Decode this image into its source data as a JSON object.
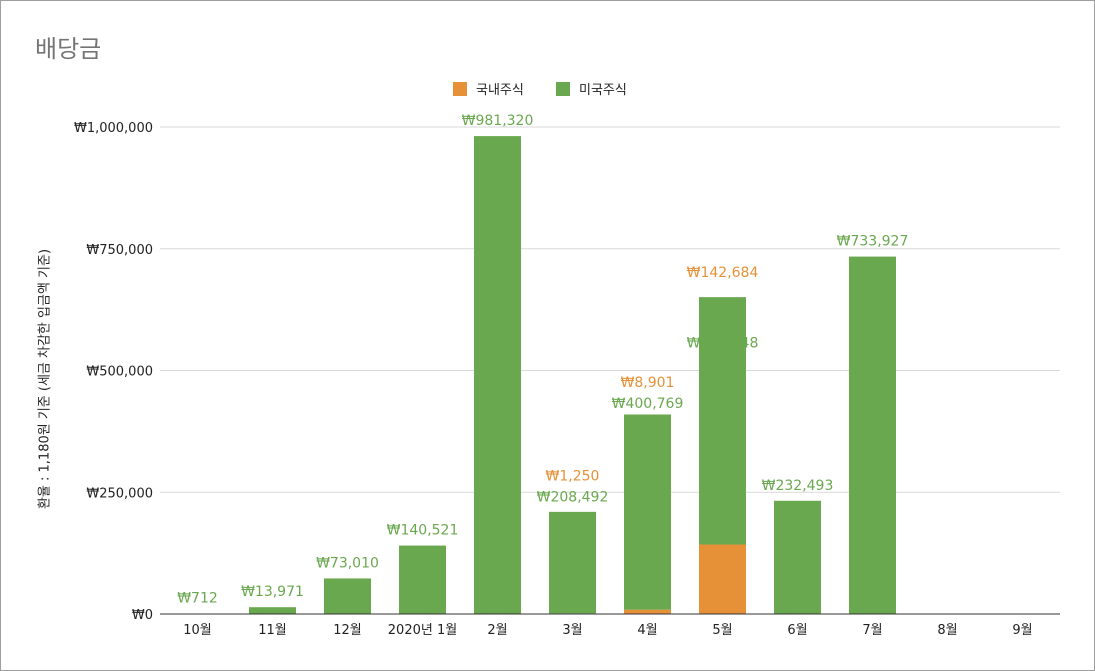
{
  "chart_data": {
    "type": "bar",
    "stacked": true,
    "title": "배당금",
    "xlabel": "",
    "ylabel": "환율 : 1,180원 기준 (세금 차감한 입금액 기준)",
    "ylim": [
      0,
      1000000
    ],
    "yticks": [
      0,
      250000,
      500000,
      750000,
      1000000
    ],
    "ytick_labels": [
      "₩0",
      "₩250,000",
      "₩500,000",
      "₩750,000",
      "₩1,000,000"
    ],
    "grid": true,
    "legend_position": "top",
    "categories": [
      "10월",
      "11월",
      "12월",
      "2020년 1월",
      "2월",
      "3월",
      "4월",
      "5월",
      "6월",
      "7월",
      "8월",
      "9월"
    ],
    "series": [
      {
        "name": "국내주식",
        "color": "#e69138",
        "values": [
          null,
          null,
          null,
          null,
          null,
          1250,
          8901,
          142684,
          null,
          null,
          null,
          null
        ],
        "labels": [
          "",
          "",
          "",
          "",
          "",
          "₩1,250",
          "₩8,901",
          "₩142,684",
          "",
          "",
          "",
          ""
        ]
      },
      {
        "name": "미국주식",
        "color": "#6aa84f",
        "values": [
          712,
          13971,
          73010,
          140521,
          981320,
          208492,
          400769,
          507948,
          232493,
          733927,
          null,
          null
        ],
        "labels": [
          "₩712",
          "₩13,971",
          "₩73,010",
          "₩140,521",
          "₩981,320",
          "₩208,492",
          "₩400,769",
          "₩507,948",
          "₩232,493",
          "₩733,927",
          "",
          ""
        ]
      }
    ]
  }
}
